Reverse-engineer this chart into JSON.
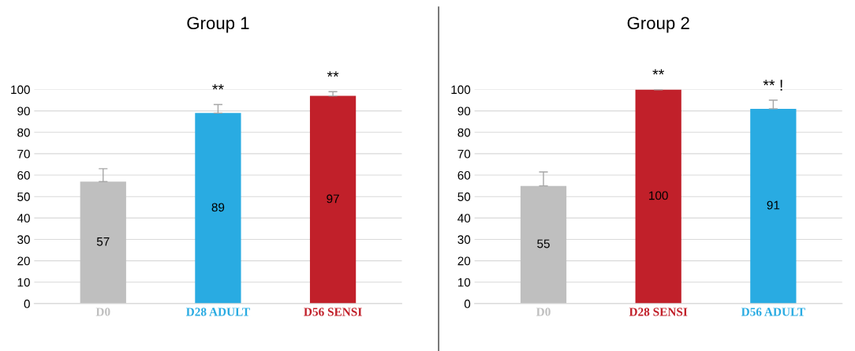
{
  "chart_data": [
    {
      "type": "bar",
      "title": "Group 1",
      "categories": [
        "D0",
        "D28 ADULT",
        "D56 SENSI"
      ],
      "values": [
        57,
        89,
        97
      ],
      "colors": [
        "#bfbfbf",
        "#29abe2",
        "#c1202a"
      ],
      "errors": [
        [
          57,
          63
        ],
        [
          89,
          93
        ],
        [
          97,
          99
        ]
      ],
      "ylim": [
        0,
        100
      ],
      "yticks": [
        0,
        10,
        20,
        30,
        40,
        50,
        60,
        70,
        80,
        90,
        100
      ],
      "grid": "y",
      "data_labels": true,
      "annotations": [
        "**",
        "**"
      ]
    },
    {
      "type": "bar",
      "title": "Group 2",
      "categories": [
        "D0",
        "D28 SENSI",
        "D56 ADULT"
      ],
      "values": [
        55,
        100,
        91
      ],
      "colors": [
        "#bfbfbf",
        "#c1202a",
        "#29abe2"
      ],
      "errors": [
        [
          55,
          61.5
        ],
        [
          100,
          100
        ],
        [
          91,
          95
        ]
      ],
      "ylim": [
        0,
        100
      ],
      "yticks": [
        0,
        10,
        20,
        30,
        40,
        50,
        60,
        70,
        80,
        90,
        100
      ],
      "grid": "y",
      "data_labels": true,
      "annotations": [
        "**",
        "** !"
      ]
    }
  ]
}
